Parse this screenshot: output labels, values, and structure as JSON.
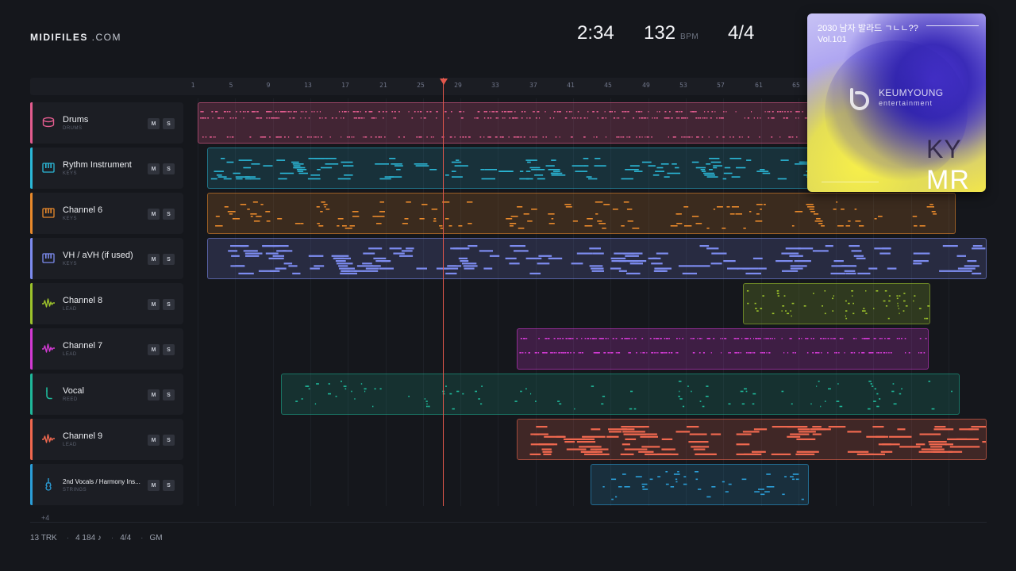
{
  "brand": {
    "bold": "MIDIFILES",
    "light": " .COM"
  },
  "transport": {
    "time": "2:34",
    "bpm": "132",
    "bpm_unit": "BPM",
    "meter": "4/4"
  },
  "ruler": [
    "1",
    "5",
    "9",
    "13",
    "17",
    "21",
    "25",
    "29",
    "33",
    "37",
    "41",
    "45",
    "49",
    "53",
    "57",
    "61",
    "65"
  ],
  "tracks": [
    {
      "name": "Drums",
      "type": "DRUMS",
      "color": "#e25c8e",
      "icon": "drum-icon",
      "mute": "M",
      "solo": "S"
    },
    {
      "name": "Rythm Instrument",
      "type": "KEYS",
      "color": "#2bb8d8",
      "icon": "keys-icon",
      "mute": "M",
      "solo": "S"
    },
    {
      "name": "Channel 6",
      "type": "KEYS",
      "color": "#e8892b",
      "icon": "keys-icon",
      "mute": "M",
      "solo": "S"
    },
    {
      "name": "VH / aVH (if used)",
      "type": "KEYS",
      "color": "#7d8cf0",
      "icon": "keys-icon",
      "mute": "M",
      "solo": "S"
    },
    {
      "name": "Channel 8",
      "type": "LEAD",
      "color": "#9cc22b",
      "icon": "waveform-icon",
      "mute": "M",
      "solo": "S"
    },
    {
      "name": "Channel 7",
      "type": "LEAD",
      "color": "#d33ad4",
      "icon": "waveform-icon",
      "mute": "M",
      "solo": "S"
    },
    {
      "name": "Vocal",
      "type": "REED",
      "color": "#1fb89a",
      "icon": "reed-icon",
      "mute": "M",
      "solo": "S"
    },
    {
      "name": "Channel 9",
      "type": "LEAD",
      "color": "#f0684f",
      "icon": "waveform-icon",
      "mute": "M",
      "solo": "S"
    },
    {
      "name": "2nd Vocals / Harmony Ins...",
      "type": "STRINGS",
      "color": "#2b9ed8",
      "icon": "guitar-icon",
      "mute": "M",
      "solo": "S"
    }
  ],
  "more_tracks": "+4",
  "footer": {
    "tracks": "13 TRK",
    "notes": "4 184 ♪",
    "meter": "4/4",
    "standard": "GM"
  },
  "album": {
    "title": "2030 남자 발라드 ㄱㄴㄴ??",
    "volume": "Vol.101",
    "label_name": "KEUMYOUNG",
    "label_sub": "entertainment",
    "ky": "KY",
    "mr": "MR"
  }
}
